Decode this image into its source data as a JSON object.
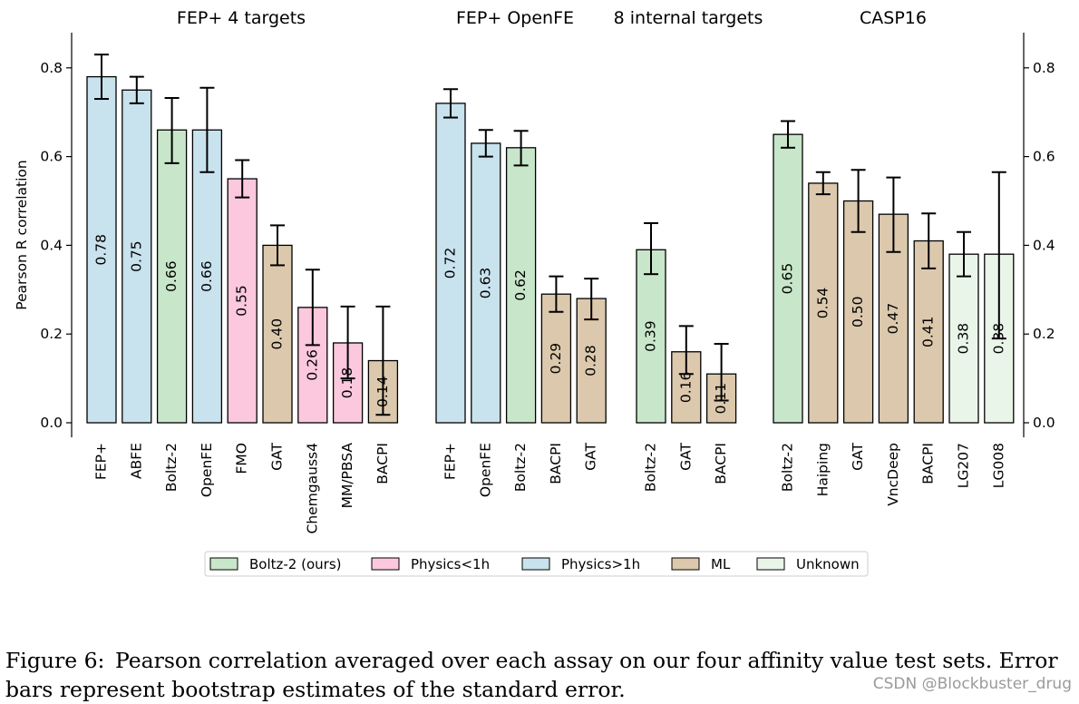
{
  "chart_data": {
    "type": "bar",
    "ylabel": "Pearson R correlation",
    "ylim": [
      0,
      0.88
    ],
    "yticks": [
      "0.0",
      "0.2",
      "0.4",
      "0.6",
      "0.8"
    ],
    "group_titles": [
      "FEP+ 4 targets",
      "FEP+ OpenFE",
      "8 internal targets",
      "CASP16"
    ],
    "groups": [
      {
        "title": "FEP+ 4 targets",
        "bars": [
          {
            "label": "FEP+",
            "value": 0.78,
            "value_label": "0.78",
            "category": "Physics>1h",
            "err": [
              0.73,
              0.83
            ]
          },
          {
            "label": "ABFE",
            "value": 0.75,
            "value_label": "0.75",
            "category": "Physics>1h",
            "err": [
              0.72,
              0.78
            ]
          },
          {
            "label": "Boltz-2",
            "value": 0.66,
            "value_label": "0.66",
            "category": "Boltz-2 (ours)",
            "err": [
              0.585,
              0.732
            ]
          },
          {
            "label": "OpenFE",
            "value": 0.66,
            "value_label": "0.66",
            "category": "Physics>1h",
            "err": [
              0.565,
              0.755
            ]
          },
          {
            "label": "FMO",
            "value": 0.55,
            "value_label": "0.55",
            "category": "Physics<1h",
            "err": [
              0.508,
              0.592
            ]
          },
          {
            "label": "GAT",
            "value": 0.4,
            "value_label": "0.40",
            "category": "ML",
            "err": [
              0.355,
              0.445
            ]
          },
          {
            "label": "Chemgauss4",
            "value": 0.26,
            "value_label": "0.26",
            "category": "Physics<1h",
            "err": [
              0.175,
              0.345
            ]
          },
          {
            "label": "MM/PBSA",
            "value": 0.18,
            "value_label": "0.18",
            "category": "Physics<1h",
            "err": [
              0.1,
              0.262
            ]
          },
          {
            "label": "BACPI",
            "value": 0.14,
            "value_label": "0.14",
            "category": "ML",
            "err": [
              0.018,
              0.262
            ]
          }
        ]
      },
      {
        "title": "FEP+ OpenFE",
        "bars": [
          {
            "label": "FEP+",
            "value": 0.72,
            "value_label": "0.72",
            "category": "Physics>1h",
            "err": [
              0.688,
              0.752
            ]
          },
          {
            "label": "OpenFE",
            "value": 0.63,
            "value_label": "0.63",
            "category": "Physics>1h",
            "err": [
              0.6,
              0.66
            ]
          },
          {
            "label": "Boltz-2",
            "value": 0.62,
            "value_label": "0.62",
            "category": "Boltz-2 (ours)",
            "err": [
              0.58,
              0.658
            ]
          },
          {
            "label": "BACPI",
            "value": 0.29,
            "value_label": "0.29",
            "category": "ML",
            "err": [
              0.25,
              0.33
            ]
          },
          {
            "label": "GAT",
            "value": 0.28,
            "value_label": "0.28",
            "category": "ML",
            "err": [
              0.233,
              0.325
            ]
          }
        ]
      },
      {
        "title": "8 internal targets",
        "bars": [
          {
            "label": "Boltz-2",
            "value": 0.39,
            "value_label": "0.39",
            "category": "Boltz-2 (ours)",
            "err": [
              0.335,
              0.45
            ]
          },
          {
            "label": "GAT",
            "value": 0.16,
            "value_label": "0.16",
            "category": "ML",
            "err": [
              0.11,
              0.218
            ]
          },
          {
            "label": "BACPI",
            "value": 0.11,
            "value_label": "0.11",
            "category": "ML",
            "err": [
              0.05,
              0.178
            ]
          }
        ]
      },
      {
        "title": "CASP16",
        "bars": [
          {
            "label": "Boltz-2",
            "value": 0.65,
            "value_label": "0.65",
            "category": "Boltz-2 (ours)",
            "err": [
              0.62,
              0.68
            ]
          },
          {
            "label": "Haiping",
            "value": 0.54,
            "value_label": "0.54",
            "category": "ML",
            "err": [
              0.515,
              0.565
            ]
          },
          {
            "label": "GAT",
            "value": 0.5,
            "value_label": "0.50",
            "category": "ML",
            "err": [
              0.43,
              0.57
            ]
          },
          {
            "label": "VncDeep",
            "value": 0.47,
            "value_label": "0.47",
            "category": "ML",
            "err": [
              0.385,
              0.553
            ]
          },
          {
            "label": "BACPI",
            "value": 0.41,
            "value_label": "0.41",
            "category": "ML",
            "err": [
              0.348,
              0.472
            ]
          },
          {
            "label": "LG207",
            "value": 0.38,
            "value_label": "0.38",
            "category": "Unknown",
            "err": [
              0.33,
              0.43
            ]
          },
          {
            "label": "LG008",
            "value": 0.38,
            "value_label": "0.38",
            "category": "Unknown",
            "err": [
              0.19,
              0.565
            ]
          }
        ]
      }
    ],
    "legend": {
      "placement": "bottom-center",
      "entries": [
        {
          "label": "Boltz-2 (ours)",
          "color": "#c8e6c9"
        },
        {
          "label": "Physics<1h",
          "color": "#fbc8dd"
        },
        {
          "label": "Physics>1h",
          "color": "#c8e2ee"
        },
        {
          "label": "ML",
          "color": "#dcc9ad"
        },
        {
          "label": "Unknown",
          "color": "#eaf5ea"
        }
      ]
    },
    "category_colors": {
      "Boltz-2 (ours)": "#c8e6c9",
      "Physics<1h": "#fbc8dd",
      "Physics>1h": "#c8e2ee",
      "ML": "#dcc9ad",
      "Unknown": "#eaf5ea"
    }
  },
  "caption": {
    "label": "Figure 6:",
    "text": "Pearson correlation averaged over each assay on our four affinity value test sets. Error bars represent bootstrap estimates of the standard error."
  },
  "watermark": "CSDN @Blockbuster_drug"
}
